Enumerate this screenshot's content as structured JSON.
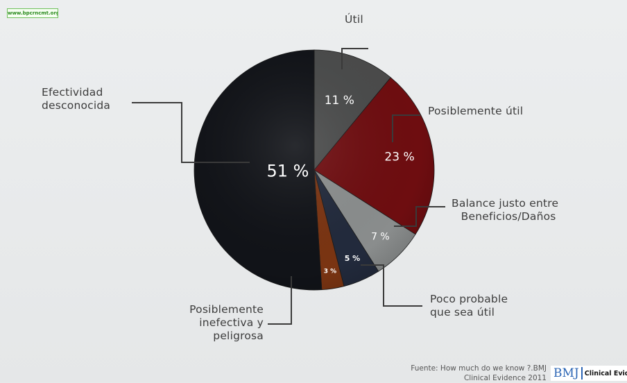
{
  "watermark": "www.bpcrncmt.org",
  "chart_data": {
    "type": "pie",
    "title": "",
    "slices": [
      {
        "label": "Útil",
        "value": 11,
        "value_label": "11 %",
        "color": "#4a4b4b"
      },
      {
        "label": "Posiblemente útil",
        "value": 23,
        "value_label": "23 %",
        "color": "#6e0d10"
      },
      {
        "label": "Balance justo entre Beneficios/Daños",
        "value": 7,
        "value_label": "7 %",
        "color": "#8a8d8d"
      },
      {
        "label": "Poco probable que sea útil",
        "value": 5,
        "value_label": "5 %",
        "color": "#222a3c"
      },
      {
        "label": "Posiblemente inefectiva y peligrosa",
        "value": 3,
        "value_label": "3 %",
        "color": "#7a3412"
      },
      {
        "label": "Efectividad desconocida",
        "value": 51,
        "value_label": "51 %",
        "color": "#111318"
      }
    ]
  },
  "labels": {
    "util": "Útil",
    "posiblemente_util": "Posiblemente útil",
    "balance_line1": "Balance justo entre",
    "balance_line2": "Beneficios/Daños",
    "poco_line1": "Poco probable",
    "poco_line2": "que sea útil",
    "inefectiva_line1": "Posiblemente",
    "inefectiva_line2": "inefectiva y",
    "inefectiva_line3": "peligrosa",
    "desconocida_line1": "Efectividad",
    "desconocida_line2": "desconocida"
  },
  "source": {
    "line1": "Fuente:  How much do we know ?.BMJ",
    "line2": "Clinical Evidence 2011"
  },
  "logo": {
    "mark": "BMJ",
    "text": "Clinical Evidence"
  }
}
